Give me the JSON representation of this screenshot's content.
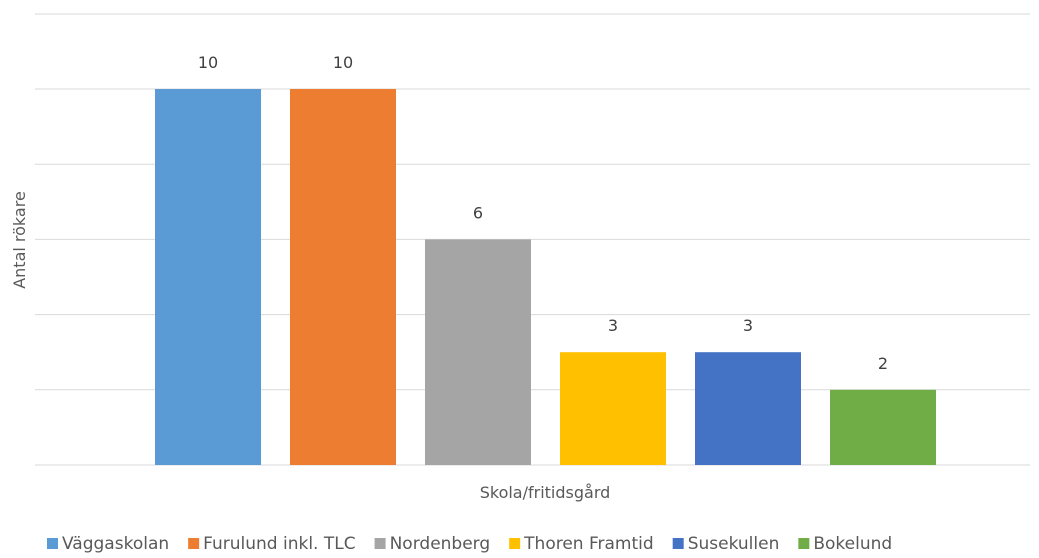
{
  "chart_data": {
    "type": "bar",
    "title": "",
    "xlabel": "Skola/fritidsgård",
    "ylabel": "Antal rökare",
    "ylim": [
      0,
      10
    ],
    "grid": true,
    "legend_position": "bottom",
    "series": [
      {
        "name": "Väggaskolan",
        "value": 10,
        "label": "10",
        "color": "#5b9bd5"
      },
      {
        "name": "Furulund inkl. TLC",
        "value": 10,
        "label": "10",
        "color": "#ed7d31"
      },
      {
        "name": "Nordenberg",
        "value": 6,
        "label": "6",
        "color": "#a5a5a5"
      },
      {
        "name": "Thoren Framtid",
        "value": 3,
        "label": "3",
        "color": "#ffc000"
      },
      {
        "name": "Susekullen",
        "value": 3,
        "label": "3",
        "color": "#4472c4"
      },
      {
        "name": "Bokelund",
        "value": 2,
        "label": "2",
        "color": "#70ad47"
      }
    ]
  }
}
